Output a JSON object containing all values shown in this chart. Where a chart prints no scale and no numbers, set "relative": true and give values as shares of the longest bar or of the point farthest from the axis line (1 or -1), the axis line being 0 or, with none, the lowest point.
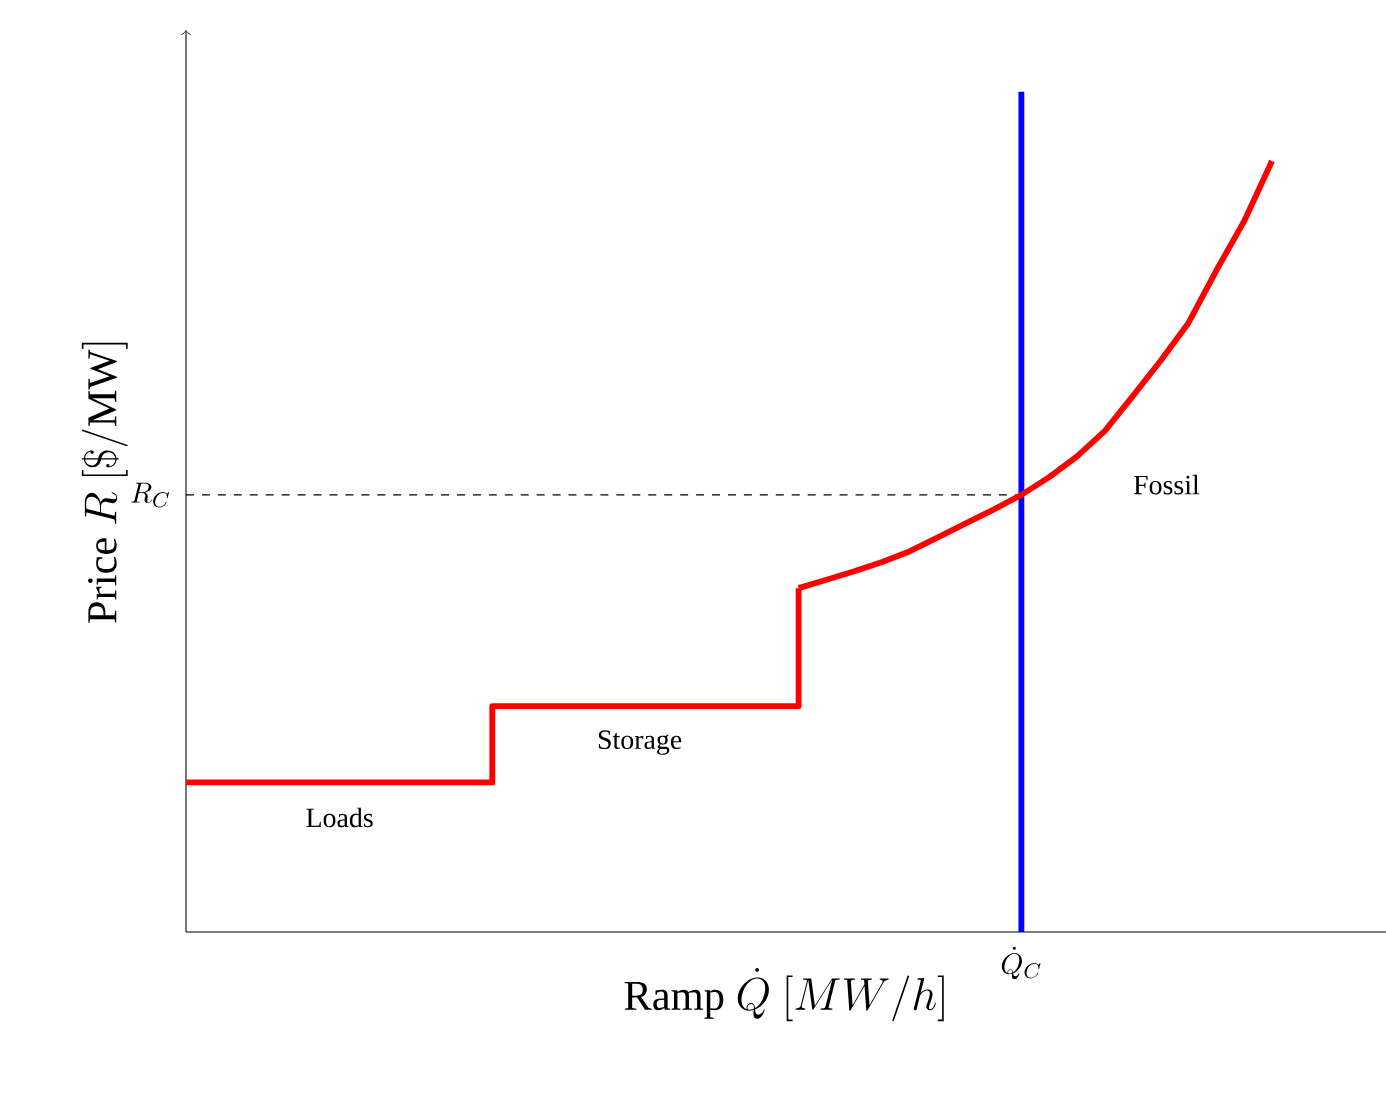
{
  "chart_data": {
    "type": "line",
    "relative": true,
    "xlabel": "\\mathrm{Ramp}\\ \\dot{Q}\\ [MW/h]",
    "ylabel": "\\mathrm{Price}\\ R\\ [\\$/\\mathrm{MW}]",
    "categories": [
      null,
      null,
      null,
      null,
      null,
      null,
      null,
      null,
      null,
      null,
      null,
      null,
      null,
      null,
      null,
      null,
      null,
      null,
      null,
      null,
      null,
      null,
      null,
      null,
      null,
      null,
      null,
      null,
      null,
      null,
      null,
      null,
      null,
      null,
      null,
      null,
      null,
      null,
      null,
      null
    ],
    "series": [
      {
        "type": "step",
        "color": "#ff0000",
        "values": [
          0.194,
          0.194,
          0.194,
          0.194,
          0.194,
          0.194,
          0.194,
          0.194,
          0.194,
          0.194,
          0.194,
          0.293,
          0.293,
          0.293,
          0.293,
          0.293,
          0.293,
          0.293,
          0.293,
          0.293,
          0.293,
          0.293,
          0.446,
          null,
          null,
          null,
          null,
          null,
          null,
          null,
          null,
          null,
          null,
          null,
          null,
          null,
          null,
          null,
          null,
          null
        ]
      },
      {
        "type": "line",
        "color": "#ff0000",
        "values": [
          null,
          null,
          null,
          null,
          null,
          null,
          null,
          null,
          null,
          null,
          null,
          null,
          null,
          null,
          null,
          null,
          null,
          null,
          null,
          null,
          null,
          null,
          0.446,
          0.457,
          0.468,
          0.48,
          0.494,
          0.512,
          0.53,
          0.548,
          0.567,
          0.59,
          0.617,
          0.65,
          0.695,
          0.741,
          0.79,
          0.858,
          0.922,
          1
        ]
      }
    ],
    "ref_lines": [
      {
        "axis": "y",
        "value": 0.567,
        "label": "R_C",
        "color": "#000000",
        "line_style": "dashed"
      }
    ],
    "annotations": [
      "Loads",
      "Storage",
      "Fossil",
      "\\dot{Q}_C"
    ]
  }
}
